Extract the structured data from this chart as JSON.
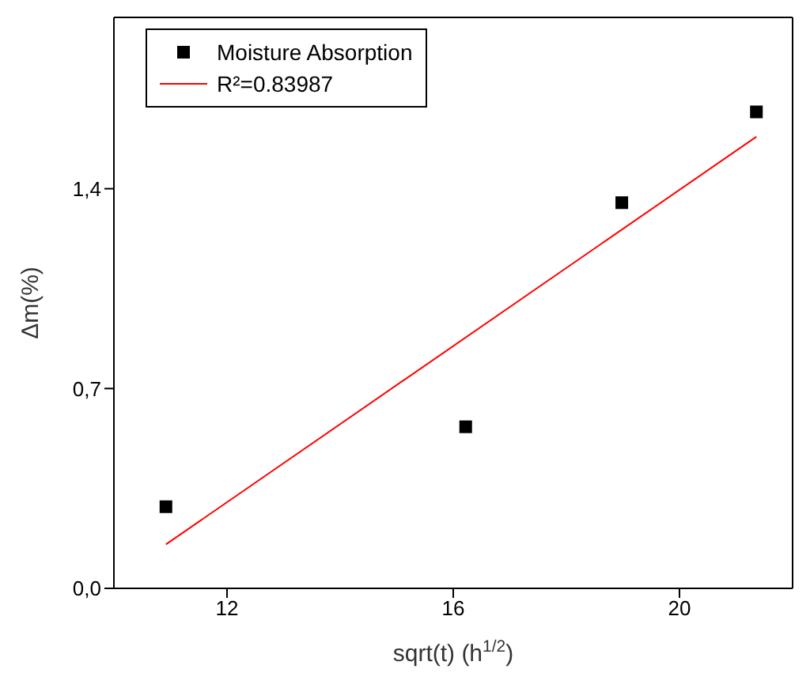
{
  "chart_data": {
    "type": "scatter",
    "xlabel": "sqrt(t) (h$^{1/2}$)",
    "ylabel": "Δm(%)",
    "xlim": [
      10,
      22
    ],
    "xticks": [
      12,
      16,
      20
    ],
    "ylim": [
      0,
      2.0
    ],
    "yticks": [
      {
        "value": 0,
        "label": "0,0"
      },
      {
        "value": 0.7,
        "label": "0,7"
      },
      {
        "value": 1.4,
        "label": "1,4"
      }
    ],
    "legend": "top left",
    "series": [
      {
        "name": "Moisture Absorption",
        "marker": "square",
        "color": "#000000",
        "x": [
          10.92,
          16.22,
          18.98,
          21.36
        ],
        "values": [
          0.286,
          0.566,
          1.351,
          1.669
        ]
      },
      {
        "name": "R²=0.83987",
        "type": "line",
        "marker": "none",
        "color": "#ff0000",
        "x": [
          10.92,
          21.36
        ],
        "values": [
          0.154,
          1.582
        ]
      }
    ]
  }
}
